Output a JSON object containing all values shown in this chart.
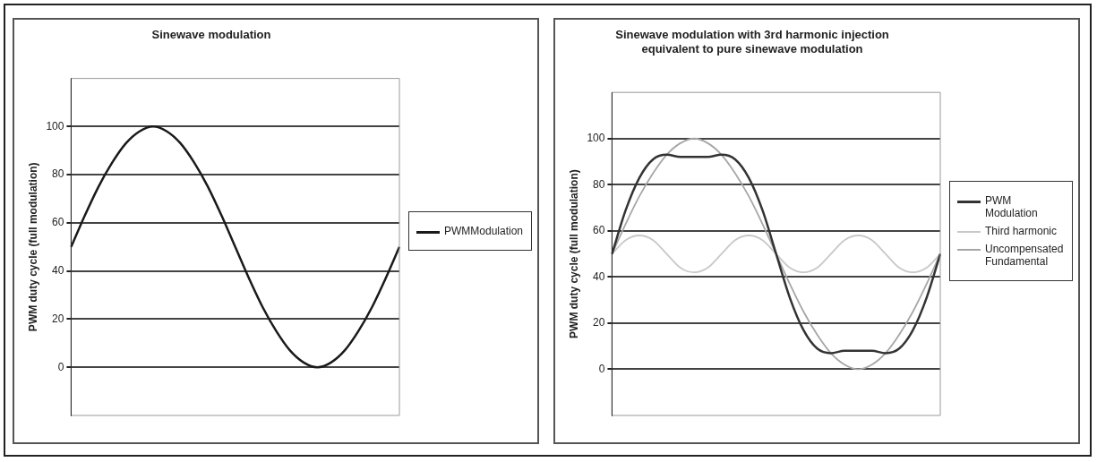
{
  "chart_data": [
    {
      "type": "line",
      "title": "Sinewave modulation",
      "ylabel": "PWM duty cycle (full modulation)",
      "categories": [
        null,
        null,
        null,
        null,
        null,
        null,
        null,
        null,
        null,
        null,
        null,
        null,
        null,
        null,
        null,
        null,
        null,
        null,
        null,
        null,
        null,
        null,
        null,
        null,
        null
      ],
      "series": [
        {
          "name": "PWMModulation",
          "color": "#1a1a1a",
          "values": [
            50,
            63,
            75,
            85,
            93,
            98,
            100,
            98,
            93,
            85,
            75,
            63,
            50,
            37,
            25,
            15,
            7,
            2,
            0,
            2,
            7,
            15,
            25,
            37,
            50
          ]
        }
      ],
      "ylim": [
        -20,
        120
      ],
      "yticks": [
        0,
        20,
        40,
        60,
        80,
        100
      ],
      "grid": "y",
      "legend": "right",
      "tick_labels": "y",
      "marker": "none",
      "line_style": "solid"
    },
    {
      "type": "line",
      "title": "Sinewave modulation with 3rd harmonic injection",
      "subtitle": "equivalent to pure sinewave modulation",
      "ylabel": "PWM duty cycle (full modulation)",
      "categories": [
        null,
        null,
        null,
        null,
        null,
        null,
        null,
        null,
        null,
        null,
        null,
        null,
        null,
        null,
        null,
        null,
        null,
        null,
        null,
        null,
        null,
        null,
        null,
        null,
        null
      ],
      "series": [
        {
          "name": "PWM Modulation",
          "color": "#333333",
          "values": [
            50,
            69,
            83,
            91,
            93,
            92,
            92,
            92,
            93,
            91,
            83,
            69,
            50,
            31,
            17,
            9,
            7,
            8,
            8,
            8,
            7,
            9,
            17,
            31,
            50
          ]
        },
        {
          "name": "Third harmonic",
          "color": "#c8c8c8",
          "values": [
            50,
            56,
            58,
            56,
            50,
            44,
            42,
            44,
            50,
            56,
            58,
            56,
            50,
            44,
            42,
            44,
            50,
            56,
            58,
            56,
            50,
            44,
            42,
            44,
            50
          ]
        },
        {
          "name": "Uncompensated Fundamental",
          "color": "#a6a6a6",
          "values": [
            50,
            63,
            75,
            85,
            93,
            98,
            100,
            98,
            93,
            85,
            75,
            63,
            50,
            37,
            25,
            15,
            7,
            2,
            0,
            2,
            7,
            15,
            25,
            37,
            50
          ]
        }
      ],
      "ylim": [
        -20,
        120
      ],
      "yticks": [
        0,
        20,
        40,
        60,
        80,
        100
      ],
      "grid": "y",
      "legend": "right",
      "tick_labels": "y",
      "marker": "none",
      "line_style": "solid"
    }
  ]
}
